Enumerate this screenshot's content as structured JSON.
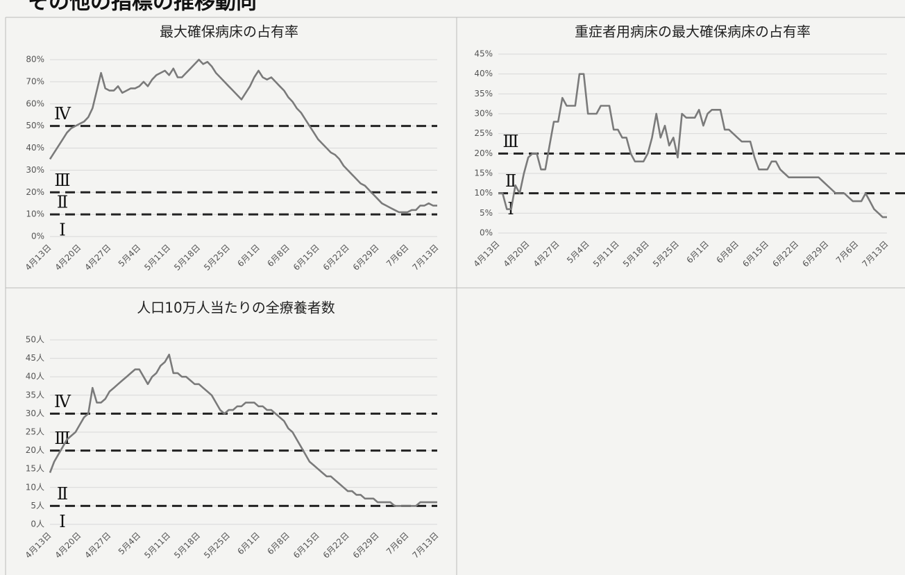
{
  "heading": "その他の指標の推移動向",
  "chart_data": [
    {
      "type": "line",
      "title": "最大確保病床の占有率",
      "categories": [
        "4月13日",
        null,
        null,
        null,
        null,
        null,
        null,
        "4月20日",
        null,
        null,
        null,
        null,
        null,
        null,
        "4月27日",
        null,
        null,
        null,
        null,
        null,
        null,
        "5月4日",
        null,
        null,
        null,
        null,
        null,
        null,
        "5月11日",
        null,
        null,
        null,
        null,
        null,
        null,
        "5月18日",
        null,
        null,
        null,
        null,
        null,
        null,
        "5月25日",
        null,
        null,
        null,
        null,
        null,
        null,
        "6月1日",
        null,
        null,
        null,
        null,
        null,
        null,
        "6月8日",
        null,
        null,
        null,
        null,
        null,
        null,
        "6月15日",
        null,
        null,
        null,
        null,
        null,
        null,
        "6月22日",
        null,
        null,
        null,
        null,
        null,
        null,
        "6月29日",
        null,
        null,
        null,
        null,
        null,
        null,
        "7月6日",
        null,
        null,
        null,
        null,
        null,
        null,
        "7月13日"
      ],
      "series": [
        {
          "color": "#7a7a7a",
          "values": [
            35,
            38,
            41,
            44,
            47,
            49,
            50,
            51,
            52,
            54,
            58,
            66,
            74,
            67,
            66,
            66,
            68,
            65,
            66,
            67,
            67,
            68,
            70,
            68,
            71,
            73,
            74,
            75,
            73,
            76,
            72,
            72,
            74,
            76,
            78,
            80,
            78,
            79,
            77,
            74,
            72,
            70,
            68,
            66,
            64,
            62,
            65,
            68,
            72,
            75,
            72,
            71,
            72,
            70,
            68,
            66,
            63,
            61,
            58,
            56,
            53,
            50,
            47,
            44,
            42,
            40,
            38,
            37,
            35,
            32,
            30,
            28,
            26,
            24,
            23,
            21,
            19,
            17,
            15,
            14,
            13,
            12,
            11,
            11,
            11,
            12,
            12,
            14,
            14,
            15,
            14,
            14
          ]
        }
      ],
      "ylim": [
        0,
        80
      ],
      "yticks": [
        {
          "value": 0,
          "label": "0%"
        },
        {
          "value": 10,
          "label": "10%"
        },
        {
          "value": 20,
          "label": "20%"
        },
        {
          "value": 30,
          "label": "30%"
        },
        {
          "value": 40,
          "label": "40%"
        },
        {
          "value": 50,
          "label": "50%"
        },
        {
          "value": 60,
          "label": "60%"
        },
        {
          "value": 70,
          "label": "70%"
        },
        {
          "value": 80,
          "label": "80%"
        }
      ],
      "grid": true,
      "thresholds": [
        50,
        20,
        10
      ],
      "stage_labels": [
        "Ⅳ",
        "Ⅲ",
        "Ⅱ",
        "Ⅰ"
      ]
    },
    {
      "type": "line",
      "title": "重症者用病床の最大確保病床の占有率",
      "categories": [
        "4月13日",
        null,
        null,
        null,
        null,
        null,
        null,
        "4月20日",
        null,
        null,
        null,
        null,
        null,
        null,
        "4月27日",
        null,
        null,
        null,
        null,
        null,
        null,
        "5月4日",
        null,
        null,
        null,
        null,
        null,
        null,
        "5月11日",
        null,
        null,
        null,
        null,
        null,
        null,
        "5月18日",
        null,
        null,
        null,
        null,
        null,
        null,
        "5月25日",
        null,
        null,
        null,
        null,
        null,
        null,
        "6月1日",
        null,
        null,
        null,
        null,
        null,
        null,
        "6月8日",
        null,
        null,
        null,
        null,
        null,
        null,
        "6月15日",
        null,
        null,
        null,
        null,
        null,
        null,
        "6月22日",
        null,
        null,
        null,
        null,
        null,
        null,
        "6月29日",
        null,
        null,
        null,
        null,
        null,
        null,
        "7月6日",
        null,
        null,
        null,
        null,
        null,
        null,
        "7月13日"
      ],
      "series": [
        {
          "color": "#7a7a7a",
          "values": [
            10,
            10,
            6,
            6,
            12,
            10,
            15,
            19,
            20,
            20,
            16,
            16,
            22,
            28,
            28,
            34,
            32,
            32,
            32,
            40,
            40,
            30,
            30,
            30,
            32,
            32,
            32,
            26,
            26,
            24,
            24,
            20,
            18,
            18,
            18,
            20,
            24,
            30,
            24,
            27,
            22,
            24,
            19,
            30,
            29,
            29,
            29,
            31,
            27,
            30,
            31,
            31,
            31,
            26,
            26,
            25,
            24,
            23,
            23,
            23,
            19,
            16,
            16,
            16,
            18,
            18,
            16,
            15,
            14,
            14,
            14,
            14,
            14,
            14,
            14,
            14,
            13,
            12,
            11,
            10,
            10,
            10,
            9,
            8,
            8,
            8,
            10,
            8,
            6,
            5,
            4,
            4
          ]
        }
      ],
      "ylim": [
        0,
        45
      ],
      "yticks": [
        {
          "value": 0,
          "label": "0%"
        },
        {
          "value": 5,
          "label": "5%"
        },
        {
          "value": 10,
          "label": "10%"
        },
        {
          "value": 15,
          "label": "15%"
        },
        {
          "value": 20,
          "label": "20%"
        },
        {
          "value": 25,
          "label": "25%"
        },
        {
          "value": 30,
          "label": "30%"
        },
        {
          "value": 35,
          "label": "35%"
        },
        {
          "value": 40,
          "label": "40%"
        },
        {
          "value": 45,
          "label": "45%"
        }
      ],
      "grid": true,
      "thresholds": [
        20,
        10
      ],
      "stage_labels": [
        "Ⅲ",
        "Ⅱ",
        "Ⅰ"
      ]
    },
    {
      "type": "line",
      "title": "人口10万人当たりの全療養者数",
      "categories": [
        "4月13日",
        null,
        null,
        null,
        null,
        null,
        null,
        "4月20日",
        null,
        null,
        null,
        null,
        null,
        null,
        "4月27日",
        null,
        null,
        null,
        null,
        null,
        null,
        "5月4日",
        null,
        null,
        null,
        null,
        null,
        null,
        "5月11日",
        null,
        null,
        null,
        null,
        null,
        null,
        "5月18日",
        null,
        null,
        null,
        null,
        null,
        null,
        "5月25日",
        null,
        null,
        null,
        null,
        null,
        null,
        "6月1日",
        null,
        null,
        null,
        null,
        null,
        null,
        "6月8日",
        null,
        null,
        null,
        null,
        null,
        null,
        "6月15日",
        null,
        null,
        null,
        null,
        null,
        null,
        "6月22日",
        null,
        null,
        null,
        null,
        null,
        null,
        "6月29日",
        null,
        null,
        null,
        null,
        null,
        null,
        "7月6日",
        null,
        null,
        null,
        null,
        null,
        null,
        "7月13日"
      ],
      "series": [
        {
          "color": "#7a7a7a",
          "values": [
            14,
            17,
            19,
            21,
            23,
            24,
            25,
            27,
            29,
            30,
            37,
            33,
            33,
            34,
            36,
            37,
            38,
            39,
            40,
            41,
            42,
            42,
            40,
            38,
            40,
            41,
            43,
            44,
            46,
            41,
            41,
            40,
            40,
            39,
            38,
            38,
            37,
            36,
            35,
            33,
            31,
            30,
            31,
            31,
            32,
            32,
            33,
            33,
            33,
            32,
            32,
            31,
            31,
            30,
            29,
            28,
            26,
            25,
            23,
            21,
            19,
            17,
            16,
            15,
            14,
            13,
            13,
            12,
            11,
            10,
            9,
            9,
            8,
            8,
            7,
            7,
            7,
            6,
            6,
            6,
            6,
            5,
            5,
            5,
            5,
            5,
            5,
            6,
            6,
            6,
            6,
            6
          ]
        }
      ],
      "ylim": [
        0,
        50
      ],
      "yticks": [
        {
          "value": 0,
          "label": "0人"
        },
        {
          "value": 5,
          "label": "5人"
        },
        {
          "value": 10,
          "label": "10人"
        },
        {
          "value": 15,
          "label": "15人"
        },
        {
          "value": 20,
          "label": "20人"
        },
        {
          "value": 25,
          "label": "25人"
        },
        {
          "value": 30,
          "label": "30人"
        },
        {
          "value": 35,
          "label": "35人"
        },
        {
          "value": 40,
          "label": "40人"
        },
        {
          "value": 45,
          "label": "45人"
        },
        {
          "value": 50,
          "label": "50人"
        }
      ],
      "grid": true,
      "thresholds": [
        30,
        20,
        5
      ],
      "stage_labels": [
        "Ⅳ",
        "Ⅲ",
        "Ⅱ",
        "Ⅰ"
      ]
    }
  ]
}
